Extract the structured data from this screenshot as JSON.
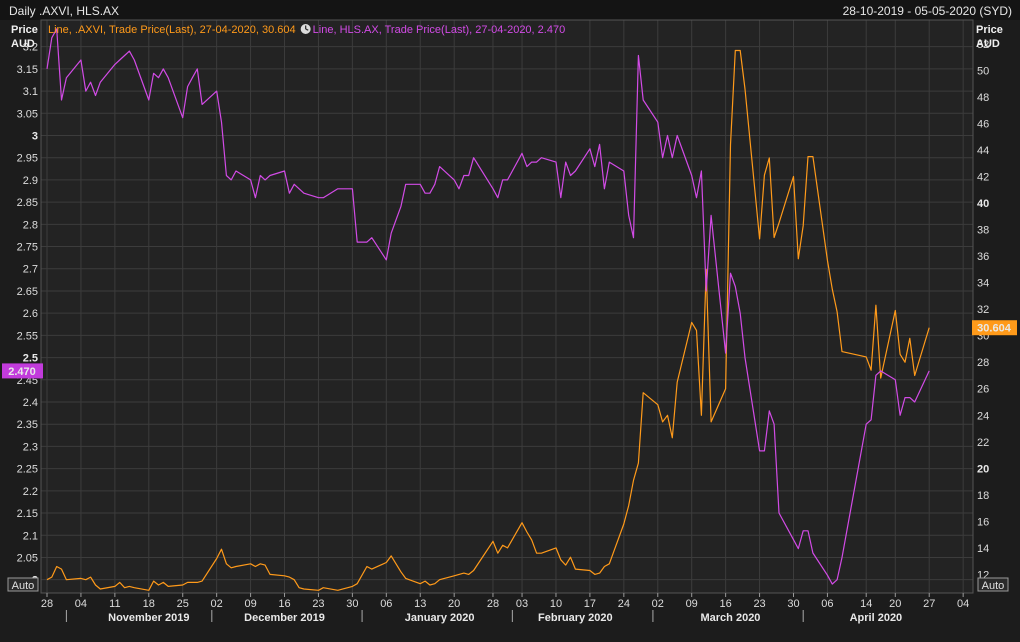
{
  "header": {
    "title": "Daily .AXVI, HLS.AX",
    "date_range": "28-10-2019 - 05-05-2020 (SYD)"
  },
  "axis": {
    "left_title": "Price",
    "left_unit": "AUD",
    "right_title": "Price",
    "right_unit": "AUD",
    "auto_label": "Auto"
  },
  "colors": {
    "axvi": "#ff9a1a",
    "hls": "#d24be6",
    "background": "#222222",
    "grid": "#3c3c3c"
  },
  "chart_data": {
    "type": "line",
    "legend": [
      {
        "text": "Line, .AXVI, Trade Price(Last), 27-04-2020, 30.604",
        "color": "#ff9a1a",
        "icon": ""
      },
      {
        "text": "Line, HLS.AX, Trade Price(Last), 27-04-2020, 2.470",
        "color": "#d24be6",
        "icon": "clock-icon"
      }
    ],
    "x_start": "2019-10-28",
    "x_end": "2020-05-05",
    "x_day_ticks": [
      "28",
      "04",
      "11",
      "18",
      "25",
      "02",
      "09",
      "16",
      "23",
      "30",
      "06",
      "13",
      "20",
      "28",
      "03",
      "10",
      "17",
      "24",
      "02",
      "09",
      "16",
      "23",
      "30",
      "06",
      "14",
      "20",
      "27",
      "04"
    ],
    "x_day_tick_dates": [
      "2019-10-28",
      "2019-11-04",
      "2019-11-11",
      "2019-11-18",
      "2019-11-25",
      "2019-12-02",
      "2019-12-09",
      "2019-12-16",
      "2019-12-23",
      "2019-12-30",
      "2020-01-06",
      "2020-01-13",
      "2020-01-20",
      "2020-01-28",
      "2020-02-03",
      "2020-02-10",
      "2020-02-17",
      "2020-02-24",
      "2020-03-02",
      "2020-03-09",
      "2020-03-16",
      "2020-03-23",
      "2020-03-30",
      "2020-04-06",
      "2020-04-14",
      "2020-04-20",
      "2020-04-27",
      "2020-05-04"
    ],
    "x_months": [
      {
        "label": "November 2019",
        "date": "2019-11-18"
      },
      {
        "label": "December 2019",
        "date": "2019-12-16"
      },
      {
        "label": "January 2020",
        "date": "2020-01-17"
      },
      {
        "label": "February 2020",
        "date": "2020-02-14"
      },
      {
        "label": "March 2020",
        "date": "2020-03-17"
      },
      {
        "label": "April 2020",
        "date": "2020-04-16"
      }
    ],
    "x_month_separators": [
      "2019-11-01",
      "2019-12-01",
      "2020-01-01",
      "2020-02-01",
      "2020-03-01",
      "2020-04-01"
    ],
    "left_axis": {
      "ylim": [
        1.97,
        3.26
      ],
      "ticks": [
        "2",
        "2.05",
        "2.1",
        "2.15",
        "2.2",
        "2.25",
        "2.3",
        "2.35",
        "2.4",
        "2.45",
        "2.5",
        "2.55",
        "2.6",
        "2.65",
        "2.7",
        "2.75",
        "2.8",
        "2.85",
        "2.9",
        "2.95",
        "3",
        "3.05",
        "3.1",
        "3.15",
        "3.2"
      ],
      "bold_ticks": [
        "2",
        "2.5",
        "3"
      ]
    },
    "right_axis": {
      "ylim": [
        10.6,
        53.8
      ],
      "ticks": [
        "12",
        "14",
        "16",
        "18",
        "20",
        "22",
        "24",
        "26",
        "28",
        "30",
        "32",
        "34",
        "36",
        "38",
        "40",
        "42",
        "44",
        "46",
        "48",
        "50",
        "52"
      ],
      "bold_ticks": [
        "20",
        "40"
      ]
    },
    "last_value_tags": {
      "hls": "2.470",
      "axvi": "30.604"
    },
    "series": [
      {
        "name": ".AXVI",
        "axis": "right",
        "color": "#ff9a1a",
        "dates": [
          "2019-10-28",
          "2019-10-29",
          "2019-10-30",
          "2019-10-31",
          "2019-11-01",
          "2019-11-04",
          "2019-11-05",
          "2019-11-06",
          "2019-11-07",
          "2019-11-08",
          "2019-11-11",
          "2019-11-12",
          "2019-11-13",
          "2019-11-14",
          "2019-11-15",
          "2019-11-18",
          "2019-11-19",
          "2019-11-20",
          "2019-11-21",
          "2019-11-22",
          "2019-11-25",
          "2019-11-26",
          "2019-11-27",
          "2019-11-28",
          "2019-11-29",
          "2019-12-02",
          "2019-12-03",
          "2019-12-04",
          "2019-12-05",
          "2019-12-06",
          "2019-12-09",
          "2019-12-10",
          "2019-12-11",
          "2019-12-12",
          "2019-12-13",
          "2019-12-16",
          "2019-12-17",
          "2019-12-18",
          "2019-12-19",
          "2019-12-20",
          "2019-12-23",
          "2019-12-24",
          "2019-12-27",
          "2019-12-30",
          "2019-12-31",
          "2020-01-02",
          "2020-01-03",
          "2020-01-06",
          "2020-01-07",
          "2020-01-08",
          "2020-01-09",
          "2020-01-10",
          "2020-01-13",
          "2020-01-14",
          "2020-01-15",
          "2020-01-16",
          "2020-01-17",
          "2020-01-20",
          "2020-01-21",
          "2020-01-22",
          "2020-01-23",
          "2020-01-24",
          "2020-01-28",
          "2020-01-29",
          "2020-01-30",
          "2020-01-31",
          "2020-02-03",
          "2020-02-04",
          "2020-02-05",
          "2020-02-06",
          "2020-02-07",
          "2020-02-10",
          "2020-02-11",
          "2020-02-12",
          "2020-02-13",
          "2020-02-14",
          "2020-02-17",
          "2020-02-18",
          "2020-02-19",
          "2020-02-20",
          "2020-02-21",
          "2020-02-24",
          "2020-02-25",
          "2020-02-26",
          "2020-02-27",
          "2020-02-28",
          "2020-03-02",
          "2020-03-03",
          "2020-03-04",
          "2020-03-05",
          "2020-03-06",
          "2020-03-09",
          "2020-03-10",
          "2020-03-11",
          "2020-03-12",
          "2020-03-13",
          "2020-03-16",
          "2020-03-17",
          "2020-03-18",
          "2020-03-19",
          "2020-03-20",
          "2020-03-23",
          "2020-03-24",
          "2020-03-25",
          "2020-03-26",
          "2020-03-27",
          "2020-03-30",
          "2020-03-31",
          "2020-04-01",
          "2020-04-02",
          "2020-04-03",
          "2020-04-06",
          "2020-04-07",
          "2020-04-08",
          "2020-04-09",
          "2020-04-14",
          "2020-04-15",
          "2020-04-16",
          "2020-04-17",
          "2020-04-20",
          "2020-04-21",
          "2020-04-22",
          "2020-04-23",
          "2020-04-24",
          "2020-04-27"
        ],
        "values": [
          11.6,
          11.8,
          12.6,
          12.4,
          11.6,
          11.7,
          11.6,
          11.8,
          11.2,
          10.9,
          11.1,
          11.4,
          11.0,
          11.1,
          11.0,
          10.8,
          11.5,
          11.2,
          11.4,
          11.1,
          11.2,
          11.4,
          11.4,
          11.4,
          11.5,
          13.2,
          13.9,
          12.8,
          12.5,
          12.6,
          12.8,
          12.6,
          12.8,
          12.7,
          12.0,
          11.9,
          11.8,
          11.6,
          11.0,
          10.9,
          10.8,
          11.0,
          10.8,
          11.1,
          11.3,
          12.6,
          12.4,
          12.9,
          13.4,
          12.8,
          12.2,
          11.7,
          11.3,
          11.5,
          11.2,
          11.3,
          11.6,
          11.9,
          12.0,
          12.1,
          12.0,
          12.3,
          14.5,
          13.6,
          14.2,
          14.0,
          15.9,
          15.2,
          14.6,
          13.6,
          13.6,
          14.0,
          13.1,
          12.7,
          13.3,
          12.4,
          12.3,
          12.0,
          12.1,
          12.6,
          12.8,
          15.8,
          17.2,
          19.1,
          20.4,
          25.7,
          24.8,
          23.5,
          24.0,
          22.3,
          26.5,
          31.0,
          30.4,
          24.0,
          35.0,
          23.5,
          26.0,
          44.4,
          51.5,
          51.5,
          48.6,
          37.3,
          42.1,
          43.4,
          37.4,
          38.5,
          42.0,
          35.8,
          38.3,
          43.5,
          43.5,
          35.7,
          33.5,
          31.8,
          28.8,
          28.4,
          27.4,
          32.3,
          26.8,
          31.9,
          28.6,
          28.0,
          29.8,
          27.0,
          30.6
        ]
      },
      {
        "name": "HLS.AX",
        "axis": "left",
        "color": "#d24be6",
        "dates": [
          "2019-10-28",
          "2019-10-29",
          "2019-10-30",
          "2019-10-31",
          "2019-11-01",
          "2019-11-04",
          "2019-11-05",
          "2019-11-06",
          "2019-11-07",
          "2019-11-08",
          "2019-11-11",
          "2019-11-12",
          "2019-11-13",
          "2019-11-14",
          "2019-11-15",
          "2019-11-18",
          "2019-11-19",
          "2019-11-20",
          "2019-11-21",
          "2019-11-22",
          "2019-11-25",
          "2019-11-26",
          "2019-11-27",
          "2019-11-28",
          "2019-11-29",
          "2019-12-02",
          "2019-12-03",
          "2019-12-04",
          "2019-12-05",
          "2019-12-06",
          "2019-12-09",
          "2019-12-10",
          "2019-12-11",
          "2019-12-12",
          "2019-12-13",
          "2019-12-16",
          "2019-12-17",
          "2019-12-18",
          "2019-12-19",
          "2019-12-20",
          "2019-12-23",
          "2019-12-24",
          "2019-12-27",
          "2019-12-30",
          "2019-12-31",
          "2020-01-02",
          "2020-01-03",
          "2020-01-06",
          "2020-01-07",
          "2020-01-08",
          "2020-01-09",
          "2020-01-10",
          "2020-01-13",
          "2020-01-14",
          "2020-01-15",
          "2020-01-16",
          "2020-01-17",
          "2020-01-20",
          "2020-01-21",
          "2020-01-22",
          "2020-01-23",
          "2020-01-24",
          "2020-01-28",
          "2020-01-29",
          "2020-01-30",
          "2020-01-31",
          "2020-02-03",
          "2020-02-04",
          "2020-02-05",
          "2020-02-06",
          "2020-02-07",
          "2020-02-10",
          "2020-02-11",
          "2020-02-12",
          "2020-02-13",
          "2020-02-14",
          "2020-02-17",
          "2020-02-18",
          "2020-02-19",
          "2020-02-20",
          "2020-02-21",
          "2020-02-24",
          "2020-02-25",
          "2020-02-26",
          "2020-02-27",
          "2020-02-28",
          "2020-03-02",
          "2020-03-03",
          "2020-03-04",
          "2020-03-05",
          "2020-03-06",
          "2020-03-09",
          "2020-03-10",
          "2020-03-11",
          "2020-03-12",
          "2020-03-13",
          "2020-03-16",
          "2020-03-17",
          "2020-03-18",
          "2020-03-19",
          "2020-03-20",
          "2020-03-23",
          "2020-03-24",
          "2020-03-25",
          "2020-03-26",
          "2020-03-27",
          "2020-03-30",
          "2020-03-31",
          "2020-04-01",
          "2020-04-02",
          "2020-04-03",
          "2020-04-06",
          "2020-04-07",
          "2020-04-08",
          "2020-04-09",
          "2020-04-14",
          "2020-04-15",
          "2020-04-16",
          "2020-04-17",
          "2020-04-20",
          "2020-04-21",
          "2020-04-22",
          "2020-04-23",
          "2020-04-24",
          "2020-04-27"
        ],
        "values": [
          3.15,
          3.22,
          3.24,
          3.08,
          3.13,
          3.17,
          3.1,
          3.12,
          3.09,
          3.12,
          3.16,
          3.17,
          3.18,
          3.19,
          3.17,
          3.08,
          3.14,
          3.13,
          3.15,
          3.13,
          3.04,
          3.11,
          3.13,
          3.15,
          3.07,
          3.1,
          3.03,
          2.91,
          2.9,
          2.92,
          2.9,
          2.86,
          2.91,
          2.9,
          2.91,
          2.92,
          2.87,
          2.89,
          2.88,
          2.87,
          2.86,
          2.86,
          2.88,
          2.88,
          2.76,
          2.76,
          2.77,
          2.72,
          2.78,
          2.81,
          2.84,
          2.89,
          2.89,
          2.87,
          2.87,
          2.89,
          2.93,
          2.9,
          2.88,
          2.91,
          2.91,
          2.95,
          2.88,
          2.86,
          2.9,
          2.9,
          2.96,
          2.93,
          2.94,
          2.94,
          2.95,
          2.94,
          2.86,
          2.94,
          2.91,
          2.92,
          2.97,
          2.93,
          2.98,
          2.88,
          2.94,
          2.92,
          2.82,
          2.77,
          3.18,
          3.08,
          3.03,
          2.95,
          3.0,
          2.95,
          3.0,
          2.91,
          2.86,
          2.92,
          2.65,
          2.82,
          2.51,
          2.69,
          2.66,
          2.6,
          2.5,
          2.29,
          2.29,
          2.38,
          2.35,
          2.15,
          2.09,
          2.07,
          2.11,
          2.11,
          2.06,
          2.01,
          1.99,
          2.0,
          2.05,
          2.35,
          2.36,
          2.46,
          2.47,
          2.45,
          2.37,
          2.41,
          2.41,
          2.4,
          2.47
        ]
      }
    ]
  }
}
